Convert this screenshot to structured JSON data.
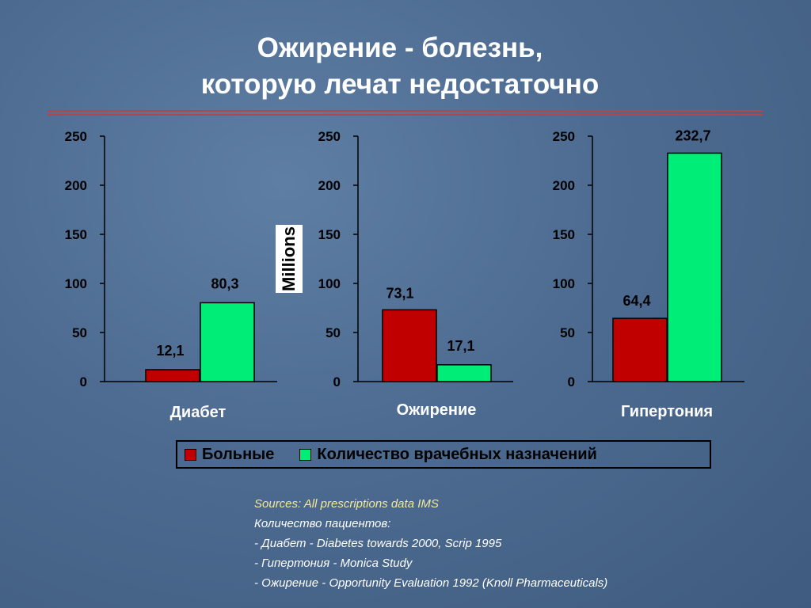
{
  "slide": {
    "title_line1": "Ожирение - болезнь,",
    "title_line2": "которую лечат недостаточно"
  },
  "unit_label": "Millions",
  "colors": {
    "patients": "#c00000",
    "prescriptions": "#00ee77",
    "background": "#4d6b91"
  },
  "legend": {
    "patients": "Больные",
    "prescriptions": "Количество врачебных назначений"
  },
  "sources": {
    "heading": "Sources: All prescriptions data IMS",
    "lines": [
      "Количество пациентов:",
      "- Диабет - Diabetes towards 2000, Scrip 1995",
      "- Гипертония - Monica Study",
      "- Ожирение - Opportunity Evaluation 1992 (Knoll Pharmaceuticals)"
    ]
  },
  "chart_data": [
    {
      "type": "bar",
      "categories": [
        "Диабет"
      ],
      "series": [
        {
          "name": "Больные",
          "values": [
            12.1
          ],
          "labels": [
            "12,1"
          ]
        },
        {
          "name": "Количество врачебных назначений",
          "values": [
            80.3
          ],
          "labels": [
            "80,3"
          ]
        }
      ],
      "ylim": [
        0,
        250
      ],
      "yticks": [
        "0",
        "50",
        "100",
        "150",
        "200",
        "250"
      ],
      "grid": false
    },
    {
      "type": "bar",
      "categories": [
        "Ожирение"
      ],
      "series": [
        {
          "name": "Больные",
          "values": [
            73.1
          ],
          "labels": [
            "73,1"
          ]
        },
        {
          "name": "Количество врачебных назначений",
          "values": [
            17.1
          ],
          "labels": [
            "17,1"
          ]
        }
      ],
      "ylim": [
        0,
        250
      ],
      "yticks": [
        "0",
        "50",
        "100",
        "150",
        "200",
        "250"
      ],
      "grid": false
    },
    {
      "type": "bar",
      "categories": [
        "Гипертония"
      ],
      "series": [
        {
          "name": "Больные",
          "values": [
            64.4
          ],
          "labels": [
            "64,4"
          ]
        },
        {
          "name": "Количество врачебных назначений",
          "values": [
            232.7
          ],
          "labels": [
            "232,7"
          ]
        }
      ],
      "ylim": [
        0,
        250
      ],
      "yticks": [
        "0",
        "50",
        "100",
        "150",
        "200",
        "250"
      ],
      "grid": false
    }
  ]
}
